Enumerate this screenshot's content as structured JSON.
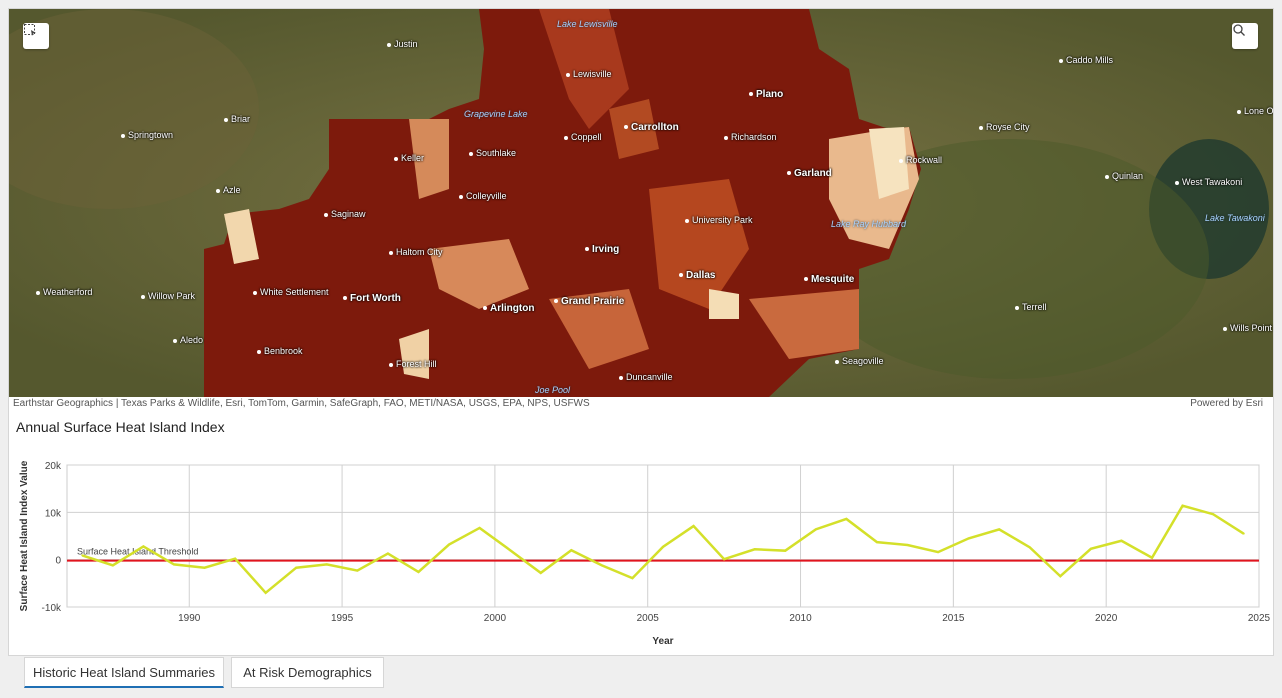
{
  "map": {
    "select_button_icon": "rectangle-select-icon",
    "search_button_icon": "search-icon",
    "attribution": "Earthstar Geographics | Texas Parks & Wildlife, Esri, TomTom, Garmin, SafeGraph, FAO, METI/NASA, USGS, EPA, NPS, USFWS",
    "powered_by": "Powered by Esri",
    "places": [
      "Justin",
      "Lake Lewisville",
      "Lewisville",
      "Caddo Mills",
      "Plano",
      "Lone Oak",
      "Briar",
      "Grapevine Lake",
      "Carrollton",
      "Royse City",
      "Springtown",
      "Coppell",
      "Richardson",
      "Keller",
      "Southlake",
      "Rockwall",
      "Garland",
      "Quinlan",
      "West Tawakoni",
      "Azle",
      "Colleyville",
      "Saginaw",
      "University Park",
      "Lake Tawakoni",
      "Lake Ray Hubbard",
      "Haltom City",
      "Irving",
      "Dallas",
      "Mesquite",
      "Weatherford",
      "White Settlement",
      "Willow Park",
      "Fort Worth",
      "Arlington",
      "Grand Prairie",
      "Terrell",
      "Aledo",
      "Wills Point",
      "Benbrook",
      "Forest Hill",
      "Seagoville",
      "Joe Pool",
      "Duncanville"
    ]
  },
  "chart_title": "Annual Surface Heat Island Index",
  "chart_data": {
    "type": "line",
    "xlabel": "Year",
    "ylabel": "Surface Heat Island Index Value",
    "xlim": [
      1986,
      2025
    ],
    "ylim": [
      -10000,
      20000
    ],
    "x_ticks": [
      "1990",
      "1995",
      "2000",
      "2005",
      "2010",
      "2015",
      "2020",
      "2025"
    ],
    "y_ticks": [
      "20k",
      "10k",
      "0",
      "-10k"
    ],
    "grid": true,
    "series_color": "#d4e02a",
    "x": [
      1986,
      1987,
      1988,
      1989,
      1990,
      1991,
      1992,
      1993,
      1994,
      1995,
      1996,
      1997,
      1998,
      1999,
      2000,
      2001,
      2002,
      2003,
      2004,
      2005,
      2006,
      2007,
      2008,
      2009,
      2010,
      2011,
      2012,
      2013,
      2014,
      2015,
      2016,
      2017,
      2018,
      2019,
      2020,
      2021,
      2022,
      2023,
      2024
    ],
    "values": [
      900,
      -1200,
      2800,
      -1000,
      -1700,
      200,
      -7000,
      -1700,
      -1000,
      -2300,
      1300,
      -2600,
      3200,
      6700,
      2000,
      -2800,
      2000,
      -1200,
      -3900,
      2700,
      7100,
      100,
      2200,
      1900,
      6400,
      8600,
      3700,
      3100,
      1600,
      4500,
      6400,
      2600,
      -3500,
      2300,
      4000,
      400,
      11400,
      9600,
      5500
    ],
    "threshold": {
      "label": "Surface Heat Island Threshold",
      "value": 0,
      "color": "#e0141e"
    }
  },
  "tabs": [
    {
      "label": "Historic Heat Island Summaries",
      "active": true
    },
    {
      "label": "At Risk Demographics",
      "active": false
    }
  ]
}
